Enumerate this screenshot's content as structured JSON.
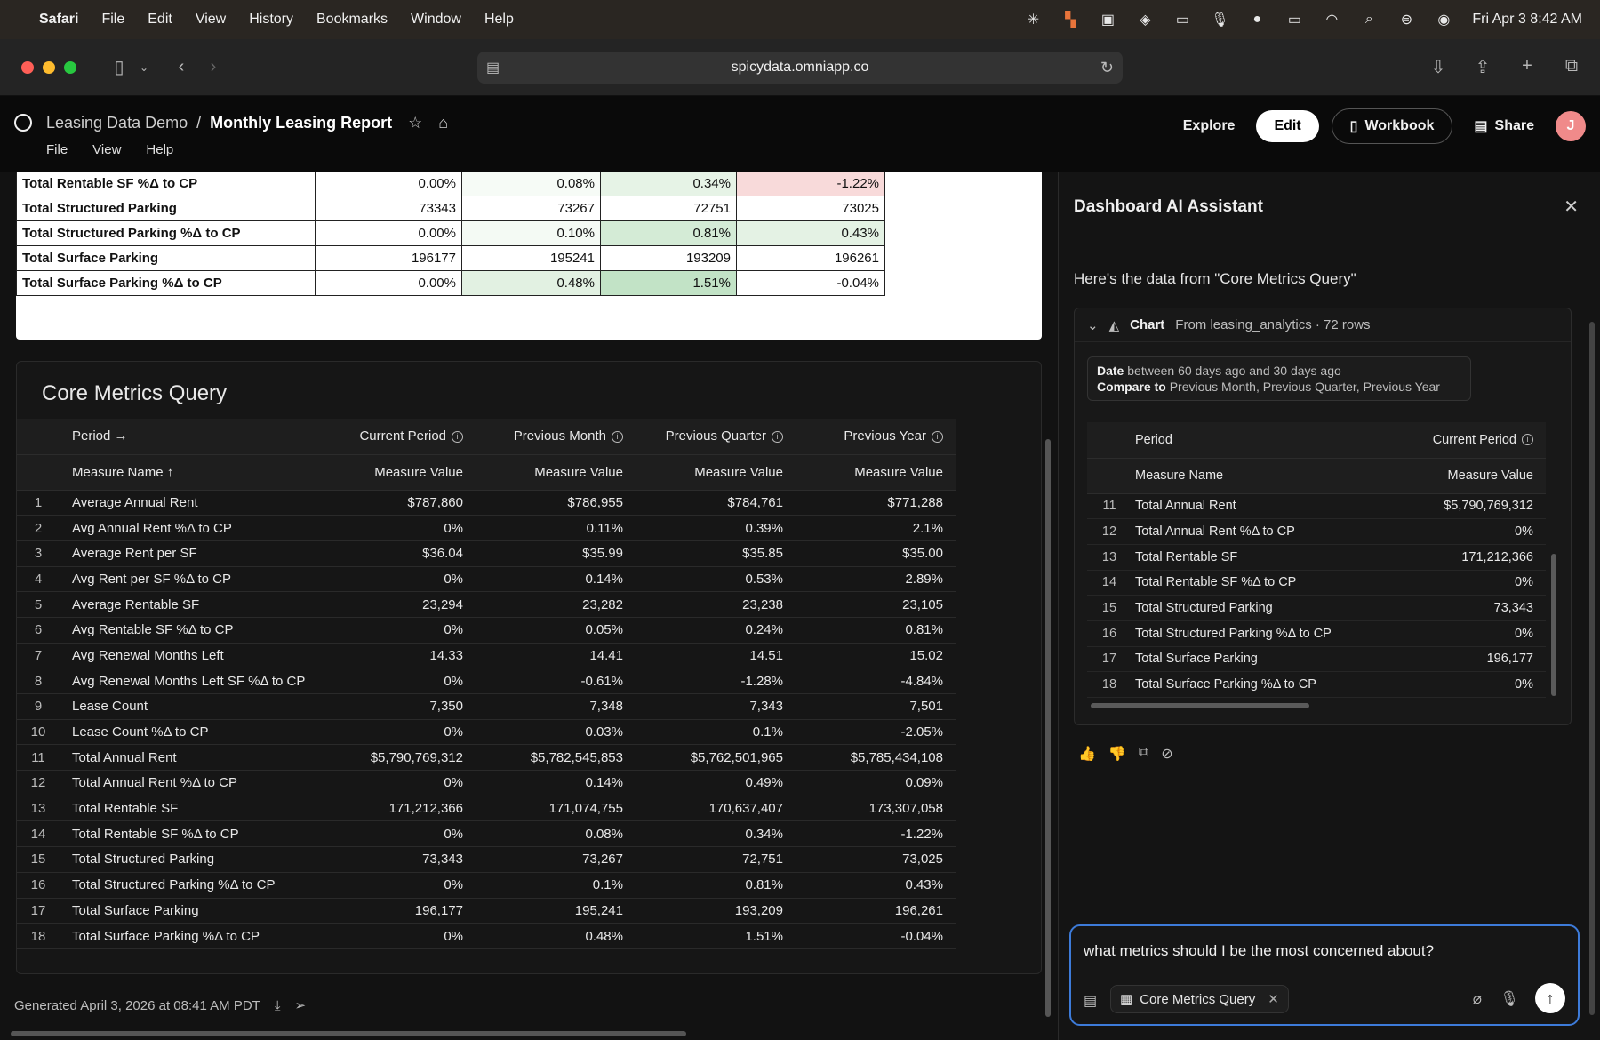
{
  "menubar": {
    "app": "Safari",
    "items": [
      "File",
      "Edit",
      "View",
      "History",
      "Bookmarks",
      "Window",
      "Help"
    ],
    "clock": "Fri Apr 3  8:42 AM"
  },
  "browser": {
    "url": "spicydata.omniapp.co"
  },
  "app": {
    "breadcrumb_parent": "Leasing Data Demo",
    "breadcrumb_sep": "/",
    "title": "Monthly Leasing Report",
    "menu": [
      "File",
      "View",
      "Help"
    ],
    "explore": "Explore",
    "edit": "Edit",
    "workbook": "Workbook",
    "share": "Share",
    "avatar": "J"
  },
  "top_table": [
    {
      "label": "Total Rentable SF %Δ to CP",
      "v": [
        "0.00%",
        "0.08%",
        "0.34%",
        "-1.22%"
      ],
      "bg": [
        "#ffffff",
        "#f6fbf6",
        "#e6f3e6",
        "#f8dada"
      ]
    },
    {
      "label": "Total Structured Parking",
      "v": [
        "73343",
        "73267",
        "72751",
        "73025"
      ],
      "bg": [
        "#ffffff",
        "#ffffff",
        "#ffffff",
        "#ffffff"
      ]
    },
    {
      "label": "Total Structured Parking %Δ to CP",
      "v": [
        "0.00%",
        "0.10%",
        "0.81%",
        "0.43%"
      ],
      "bg": [
        "#ffffff",
        "#f4faf4",
        "#d4ebd6",
        "#e4f2e4"
      ]
    },
    {
      "label": "Total Surface Parking",
      "v": [
        "196177",
        "195241",
        "193209",
        "196261"
      ],
      "bg": [
        "#ffffff",
        "#ffffff",
        "#ffffff",
        "#ffffff"
      ]
    },
    {
      "label": "Total Surface Parking %Δ to CP",
      "v": [
        "0.00%",
        "0.48%",
        "1.51%",
        "-0.04%"
      ],
      "bg": [
        "#ffffff",
        "#e2f1e2",
        "#c2e3c6",
        "#ffffff"
      ]
    }
  ],
  "core": {
    "title": "Core Metrics Query",
    "h_period": "Period →",
    "h_cols": [
      "Current Period",
      "Previous Month",
      "Previous Quarter",
      "Previous Year"
    ],
    "h_measure": "Measure Name ↑",
    "h_value": "Measure Value",
    "rows": [
      {
        "n": "1",
        "name": "Average Annual Rent",
        "v": [
          "$787,860",
          "$786,955",
          "$784,761",
          "$771,288"
        ]
      },
      {
        "n": "2",
        "name": "Avg Annual Rent %Δ to CP",
        "v": [
          "0%",
          "0.11%",
          "0.39%",
          "2.1%"
        ]
      },
      {
        "n": "3",
        "name": "Average Rent per SF",
        "v": [
          "$36.04",
          "$35.99",
          "$35.85",
          "$35.00"
        ]
      },
      {
        "n": "4",
        "name": "Avg Rent per SF %Δ to CP",
        "v": [
          "0%",
          "0.14%",
          "0.53%",
          "2.89%"
        ]
      },
      {
        "n": "5",
        "name": "Average Rentable SF",
        "v": [
          "23,294",
          "23,282",
          "23,238",
          "23,105"
        ]
      },
      {
        "n": "6",
        "name": "Avg Rentable SF %Δ to CP",
        "v": [
          "0%",
          "0.05%",
          "0.24%",
          "0.81%"
        ]
      },
      {
        "n": "7",
        "name": "Avg Renewal Months Left",
        "v": [
          "14.33",
          "14.41",
          "14.51",
          "15.02"
        ]
      },
      {
        "n": "8",
        "name": "Avg Renewal Months Left SF %Δ to CP",
        "v": [
          "0%",
          "-0.61%",
          "-1.28%",
          "-4.84%"
        ]
      },
      {
        "n": "9",
        "name": "Lease Count",
        "v": [
          "7,350",
          "7,348",
          "7,343",
          "7,501"
        ]
      },
      {
        "n": "10",
        "name": "Lease Count %Δ to CP",
        "v": [
          "0%",
          "0.03%",
          "0.1%",
          "-2.05%"
        ]
      },
      {
        "n": "11",
        "name": "Total Annual Rent",
        "v": [
          "$5,790,769,312",
          "$5,782,545,853",
          "$5,762,501,965",
          "$5,785,434,108"
        ]
      },
      {
        "n": "12",
        "name": "Total Annual Rent %Δ to CP",
        "v": [
          "0%",
          "0.14%",
          "0.49%",
          "0.09%"
        ]
      },
      {
        "n": "13",
        "name": "Total Rentable SF",
        "v": [
          "171,212,366",
          "171,074,755",
          "170,637,407",
          "173,307,058"
        ]
      },
      {
        "n": "14",
        "name": "Total Rentable SF %Δ to CP",
        "v": [
          "0%",
          "0.08%",
          "0.34%",
          "-1.22%"
        ]
      },
      {
        "n": "15",
        "name": "Total Structured Parking",
        "v": [
          "73,343",
          "73,267",
          "72,751",
          "73,025"
        ]
      },
      {
        "n": "16",
        "name": "Total Structured Parking %Δ to CP",
        "v": [
          "0%",
          "0.1%",
          "0.81%",
          "0.43%"
        ]
      },
      {
        "n": "17",
        "name": "Total Surface Parking",
        "v": [
          "196,177",
          "195,241",
          "193,209",
          "196,261"
        ]
      },
      {
        "n": "18",
        "name": "Total Surface Parking %Δ to CP",
        "v": [
          "0%",
          "0.48%",
          "1.51%",
          "-0.04%"
        ]
      }
    ],
    "footer": "Generated April 3, 2026 at 08:41 AM PDT"
  },
  "panel": {
    "title": "Dashboard AI Assistant",
    "intro": "Here's the data from \"Core Metrics Query\"",
    "chart_label": "Chart",
    "chart_source": "From leasing_analytics · 72 rows",
    "filter_date_label": "Date",
    "filter_date_value": "between 60 days ago and 30 days ago",
    "filter_compare_label": "Compare to",
    "filter_compare_value": "Previous Month, Previous Quarter, Previous Year",
    "h_period": "Period",
    "h_current": "Current Period",
    "h_measure": "Measure Name",
    "h_value": "Measure Value",
    "rows": [
      {
        "n": "11",
        "name": "Total Annual Rent",
        "v": "$5,790,769,312"
      },
      {
        "n": "12",
        "name": "Total Annual Rent %Δ to CP",
        "v": "0%"
      },
      {
        "n": "13",
        "name": "Total Rentable SF",
        "v": "171,212,366"
      },
      {
        "n": "14",
        "name": "Total Rentable SF %Δ to CP",
        "v": "0%"
      },
      {
        "n": "15",
        "name": "Total Structured Parking",
        "v": "73,343"
      },
      {
        "n": "16",
        "name": "Total Structured Parking %Δ to CP",
        "v": "0%"
      },
      {
        "n": "17",
        "name": "Total Surface Parking",
        "v": "196,177"
      },
      {
        "n": "18",
        "name": "Total Surface Parking %Δ to CP",
        "v": "0%"
      }
    ],
    "input_value": "what metrics should I be the most concerned about?",
    "context_chip": "Core Metrics Query"
  },
  "icons": {
    "apple": "apple-icon",
    "sidebar": "sidebar-icon",
    "back": "back-icon",
    "forward": "forward-icon",
    "star": "star-icon",
    "tag": "tag-icon",
    "info": "info-icon",
    "download": "download-icon",
    "send": "send-icon",
    "close": "close-icon",
    "thumbs_up": "thumbs-up-icon",
    "thumbs_down": "thumbs-down-icon",
    "copy": "copy-icon",
    "compass": "compass-icon",
    "attach": "paperclip-icon",
    "mic": "mic-icon",
    "submit": "arrow-up-icon"
  },
  "colors": {
    "accent": "#3d7bd9",
    "avatar": "#f08a8a",
    "close_red": "#ff5f57",
    "min_yellow": "#febc2e",
    "max_green": "#28c840"
  }
}
